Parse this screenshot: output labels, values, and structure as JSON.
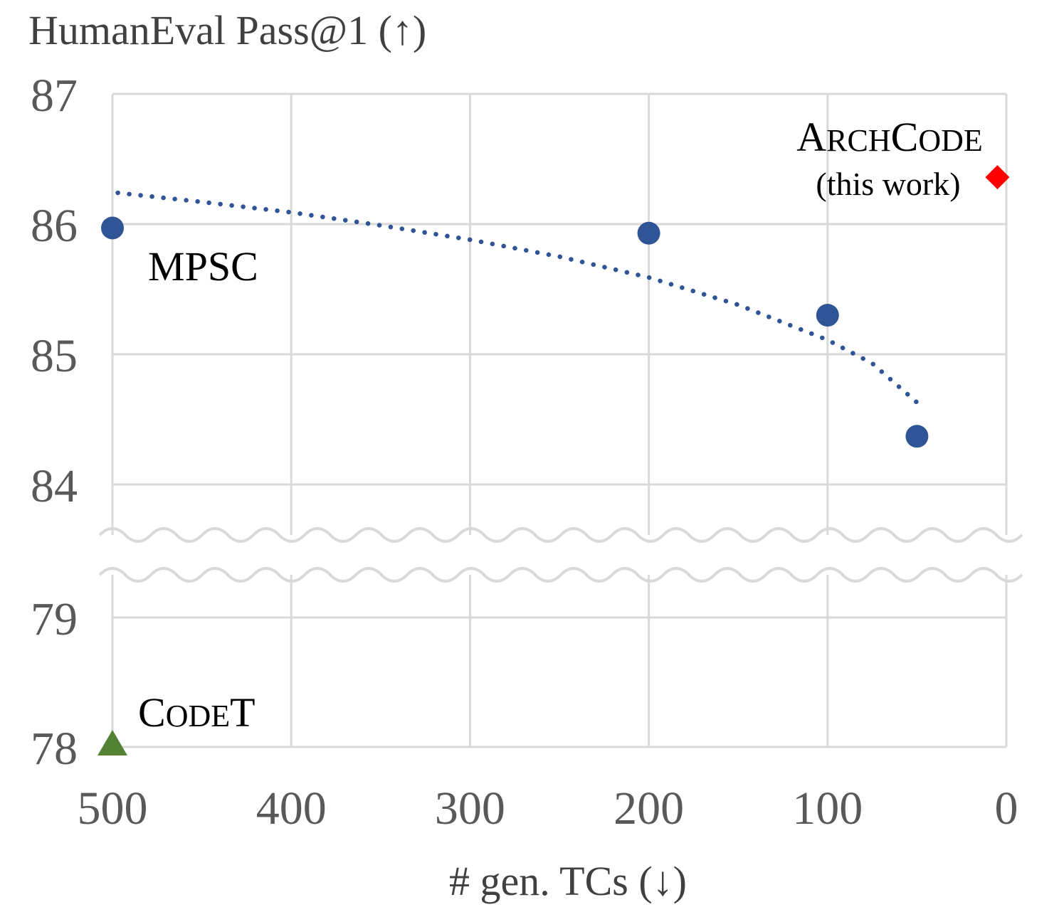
{
  "chart_data": {
    "type": "scatter",
    "ylabel": "HumanEval Pass@1 (↑)",
    "xlabel": "# gen. TCs (↓)",
    "x_ticks": [
      500,
      400,
      300,
      200,
      100,
      0
    ],
    "y_ticks_upper": [
      87,
      86,
      85,
      84
    ],
    "y_ticks_lower": [
      79,
      78
    ],
    "xlim": [
      500,
      0
    ],
    "ylim_upper": [
      84,
      87
    ],
    "ylim_lower": [
      78,
      79
    ],
    "y_axis_break": true,
    "grid": true,
    "series": [
      {
        "name": "MPSC",
        "marker": "circle",
        "color": "#2F5597",
        "points": [
          {
            "x": 500,
            "y": 85.97
          },
          {
            "x": 200,
            "y": 85.93
          },
          {
            "x": 100,
            "y": 85.3
          },
          {
            "x": 50,
            "y": 84.37
          }
        ],
        "trendline": {
          "style": "dotted",
          "points": [
            {
              "x": 497,
              "y": 86.24
            },
            {
              "x": 450,
              "y": 86.17
            },
            {
              "x": 400,
              "y": 86.09
            },
            {
              "x": 350,
              "y": 85.99
            },
            {
              "x": 300,
              "y": 85.88
            },
            {
              "x": 250,
              "y": 85.75
            },
            {
              "x": 200,
              "y": 85.59
            },
            {
              "x": 150,
              "y": 85.38
            },
            {
              "x": 100,
              "y": 85.11
            },
            {
              "x": 75,
              "y": 84.93
            },
            {
              "x": 50,
              "y": 84.63
            }
          ]
        }
      },
      {
        "name": "CodeT",
        "marker": "triangle",
        "color": "#548235",
        "points": [
          {
            "x": 500,
            "y": 78
          }
        ]
      },
      {
        "name": "ArchCode",
        "marker": "diamond",
        "color": "#FF0000",
        "points": [
          {
            "x": 5,
            "y": 86.36
          }
        ]
      }
    ],
    "annotations": {
      "mpsc": "MPSC",
      "codet": {
        "big1": "C",
        "small": "ODE",
        "big2": "T"
      },
      "archcode": {
        "big1": "A",
        "small1": "RCH",
        "big2": "C",
        "small2": "ODE",
        "line2": "(this work)"
      }
    },
    "colors": {
      "grid": "#D9D9D9",
      "tick_text": "#595959",
      "axis_title": "#404040"
    }
  }
}
